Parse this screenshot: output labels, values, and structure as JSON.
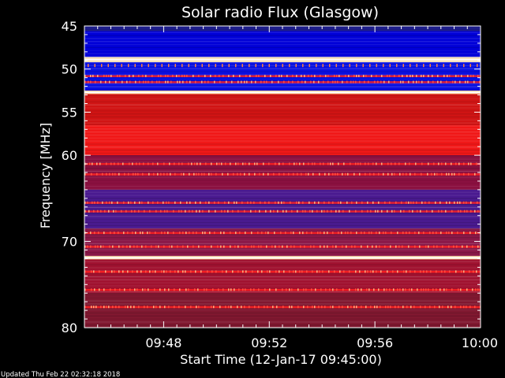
{
  "title": "Solar radio Flux (Glasgow)",
  "updated_text": "Updated Thu Feb 22 02:32:18 2018",
  "chart_data": {
    "type": "heatmap",
    "title": "Solar radio Flux (Glasgow)",
    "xlabel": "Start Time (12-Jan-17 09:45:00)",
    "ylabel": "Frequency [MHz]",
    "x_unit": "minutes after 09:45:00",
    "xlim": [
      0,
      15
    ],
    "ylim": [
      45,
      80
    ],
    "y_inverted": true,
    "grid": false,
    "x_ticks": [
      {
        "value": 3,
        "label": "09:48"
      },
      {
        "value": 7,
        "label": "09:52"
      },
      {
        "value": 11,
        "label": "09:56"
      },
      {
        "value": 15,
        "label": "10:00"
      }
    ],
    "y_ticks": [
      {
        "value": 45,
        "label": "45"
      },
      {
        "value": 50,
        "label": "50"
      },
      {
        "value": 55,
        "label": "55"
      },
      {
        "value": 60,
        "label": "60"
      },
      {
        "value": 70,
        "label": "70"
      },
      {
        "value": 80,
        "label": "80"
      }
    ],
    "frequency_bands_mhz": [
      {
        "from": 45.0,
        "to": 45.6,
        "level": "low",
        "color": "#1e1e8c"
      },
      {
        "from": 45.6,
        "to": 48.6,
        "level": "low",
        "color": "#0000d8"
      },
      {
        "from": 48.6,
        "to": 49.2,
        "level": "very high",
        "color": "#fff2d0"
      },
      {
        "from": 49.2,
        "to": 52.5,
        "level": "low",
        "color": "#0a10e0"
      },
      {
        "from": 52.5,
        "to": 52.9,
        "level": "high",
        "color": "#ff9a6a"
      },
      {
        "from": 52.9,
        "to": 56.5,
        "level": "medium",
        "color": "#d01414"
      },
      {
        "from": 56.5,
        "to": 60.0,
        "level": "medium-high",
        "color": "#f01818"
      },
      {
        "from": 60.0,
        "to": 64.0,
        "level": "medium-low",
        "color": "#8a1040"
      },
      {
        "from": 64.0,
        "to": 68.5,
        "level": "low-medium",
        "color": "#4a1a90"
      },
      {
        "from": 68.5,
        "to": 71.7,
        "level": "medium-low",
        "color": "#8a1848"
      },
      {
        "from": 71.7,
        "to": 72.0,
        "level": "very high",
        "color": "#ffe8b0"
      },
      {
        "from": 72.0,
        "to": 76.0,
        "level": "medium",
        "color": "#a01230"
      },
      {
        "from": 76.0,
        "to": 80.0,
        "level": "medium-low",
        "color": "#801830"
      }
    ],
    "strong_lines_mhz": [
      48.9,
      52.7,
      71.9
    ],
    "interference_lines_mhz": [
      50.8,
      51.5,
      61.0,
      62.2,
      65.5,
      66.5,
      69.0,
      70.6,
      73.5,
      75.6,
      77.6
    ],
    "color_scale": [
      "#000050",
      "#0000ff",
      "#c00000",
      "#ff3030",
      "#ffa060",
      "#ffffff"
    ]
  },
  "colors": {
    "background": "#000000",
    "text": "#ffffff",
    "low": "#0000e0",
    "medium": "#d01010",
    "high": "#ffe8b0"
  }
}
